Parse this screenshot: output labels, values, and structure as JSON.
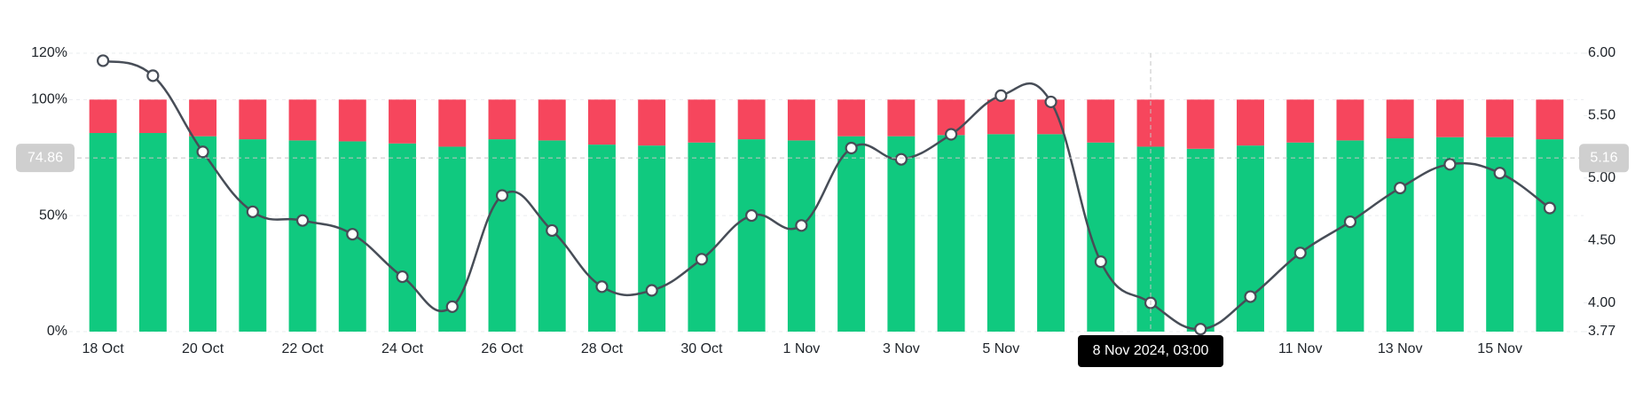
{
  "chart_data": {
    "type": "bar",
    "stacked": true,
    "grid": true,
    "categories": [
      "18 Oct",
      null,
      "20 Oct",
      null,
      "22 Oct",
      null,
      "24 Oct",
      null,
      "26 Oct",
      null,
      "28 Oct",
      null,
      "30 Oct",
      null,
      "1 Nov",
      null,
      "3 Nov",
      null,
      "5 Nov",
      null,
      null,
      null,
      null,
      null,
      "11 Nov",
      null,
      "13 Nov",
      null,
      "15 Nov",
      null
    ],
    "series": [
      {
        "color": "#10c97f",
        "values": [
          85.6,
          85.6,
          84.2,
          82.9,
          82.4,
          82.0,
          81.1,
          79.7,
          82.9,
          82.4,
          80.6,
          80.2,
          81.5,
          82.9,
          82.4,
          84.2,
          84.2,
          84.7,
          85.1,
          85.1,
          81.5,
          79.7,
          78.8,
          80.2,
          81.5,
          82.4,
          83.3,
          83.8,
          83.8,
          82.9
        ]
      },
      {
        "color": "#f6465d",
        "values": [
          14.4,
          14.4,
          15.8,
          17.1,
          17.6,
          18.0,
          18.9,
          20.3,
          17.1,
          17.6,
          19.4,
          19.8,
          18.5,
          17.1,
          17.6,
          15.8,
          15.8,
          15.3,
          14.9,
          14.9,
          18.5,
          20.3,
          21.2,
          19.8,
          18.5,
          17.6,
          16.7,
          16.2,
          16.2,
          17.1
        ]
      },
      {
        "type": "line",
        "axis": "y2",
        "color": "#474d57",
        "values": [
          5.94,
          5.82,
          5.21,
          4.73,
          4.66,
          4.55,
          4.21,
          3.97,
          4.86,
          4.58,
          4.13,
          4.1,
          4.35,
          4.7,
          4.62,
          5.24,
          5.15,
          5.35,
          5.66,
          5.61,
          4.33,
          4.0,
          3.79,
          4.05,
          4.4,
          4.65,
          4.92,
          5.11,
          5.04,
          4.76
        ]
      }
    ],
    "ylim": [
      0,
      120
    ],
    "yticks": [
      {
        "value": 0,
        "label": "0%"
      },
      {
        "value": 50,
        "label": "50%"
      },
      {
        "value": 100,
        "label": "100%"
      },
      {
        "value": 120,
        "label": "120%"
      }
    ],
    "y2lim": [
      3.77,
      6.0
    ],
    "y2ticks": [
      {
        "value": 3.77,
        "label": "3.77"
      },
      {
        "value": 4,
        "label": "4.00"
      },
      {
        "value": 4.5,
        "label": "4.50"
      },
      {
        "value": 5,
        "label": "5.00"
      },
      {
        "value": 5.5,
        "label": "5.50"
      },
      {
        "value": 6,
        "label": "6.00"
      }
    ],
    "crosshair": {
      "index": 21,
      "x_label": "8 Nov 2024, 03:00",
      "y": 74.86,
      "y2": 5.16
    }
  }
}
